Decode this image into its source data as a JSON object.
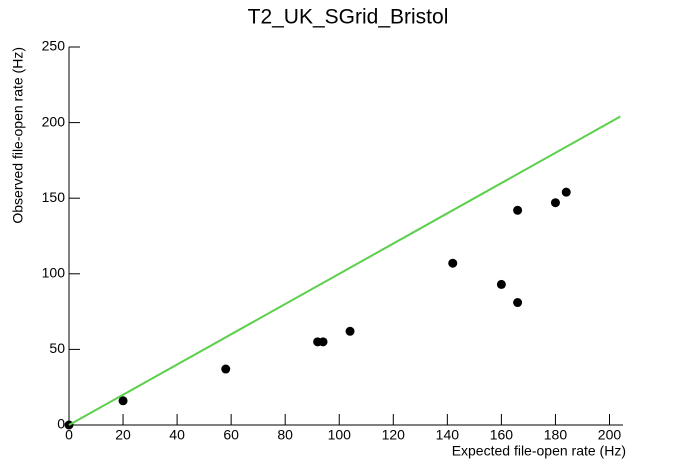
{
  "chart_data": {
    "type": "scatter",
    "title": "T2_UK_SGrid_Bristol",
    "x_label": "Expected file-open rate (Hz)",
    "y_label": "Observed file-open rate (Hz)",
    "series": [
      {
        "type": "scatter",
        "color": "#000000",
        "x": [
          0,
          20,
          58,
          92,
          94,
          104,
          142,
          160,
          166,
          166,
          180,
          184
        ],
        "values": [
          0,
          16,
          37,
          55,
          55,
          62,
          107,
          93,
          142,
          81,
          147,
          154
        ]
      },
      {
        "type": "line",
        "color": "#5ccf4c",
        "x": [
          0,
          204
        ],
        "values": [
          0,
          204
        ]
      }
    ],
    "xlim": [
      0,
      205
    ],
    "xticks": [
      0,
      20,
      40,
      60,
      80,
      100,
      120,
      140,
      160,
      180,
      200
    ],
    "ylim": [
      0,
      250
    ],
    "yticks": [
      0,
      50,
      100,
      150,
      200,
      250
    ]
  }
}
